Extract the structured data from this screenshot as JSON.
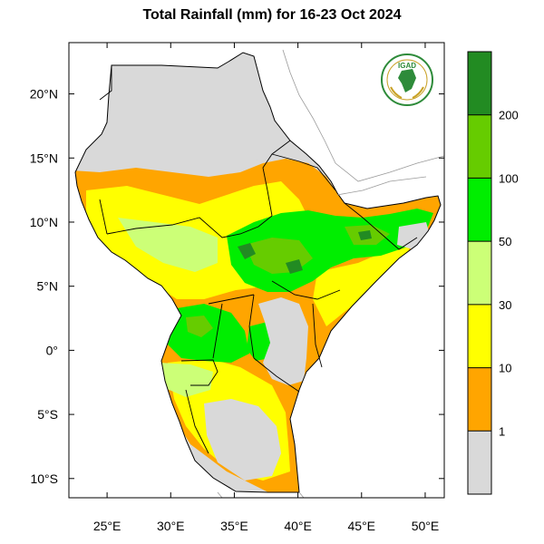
{
  "title": "Total Rainfall (mm) for 16-23 Oct 2024",
  "logo": {
    "text": "IGAD",
    "icon": "igad-logo-icon"
  },
  "map": {
    "lon_range": [
      22,
      51.5
    ],
    "lat_range": [
      -11.5,
      24
    ],
    "x_ticks": [
      {
        "value": 25,
        "label": "25°E"
      },
      {
        "value": 30,
        "label": "30°E"
      },
      {
        "value": 35,
        "label": "35°E"
      },
      {
        "value": 40,
        "label": "40°E"
      },
      {
        "value": 45,
        "label": "45°E"
      },
      {
        "value": 50,
        "label": "50°E"
      }
    ],
    "y_ticks": [
      {
        "value": 20,
        "label": "20°N"
      },
      {
        "value": 15,
        "label": "15°N"
      },
      {
        "value": 10,
        "label": "10°N"
      },
      {
        "value": 5,
        "label": "5°N"
      },
      {
        "value": 0,
        "label": "0°"
      },
      {
        "value": -5,
        "label": "5°S"
      },
      {
        "value": -10,
        "label": "10°S"
      }
    ]
  },
  "colorbar": {
    "bins": [
      {
        "color": "#d9d9d9"
      },
      {
        "color": "#ffa500"
      },
      {
        "color": "#ffff00"
      },
      {
        "color": "#ccff77"
      },
      {
        "color": "#00ee00"
      },
      {
        "color": "#66cc00"
      },
      {
        "color": "#228b22"
      }
    ],
    "labels": [
      "1",
      "10",
      "30",
      "50",
      "100",
      "200"
    ]
  },
  "colors": {
    "no_rain": "#d9d9d9",
    "r1_10": "#ffa500",
    "r10_30": "#ffff00",
    "r30_50": "#ccff77",
    "r50_100": "#00ee00",
    "r100_200": "#66cc00",
    "r200": "#228b22"
  }
}
